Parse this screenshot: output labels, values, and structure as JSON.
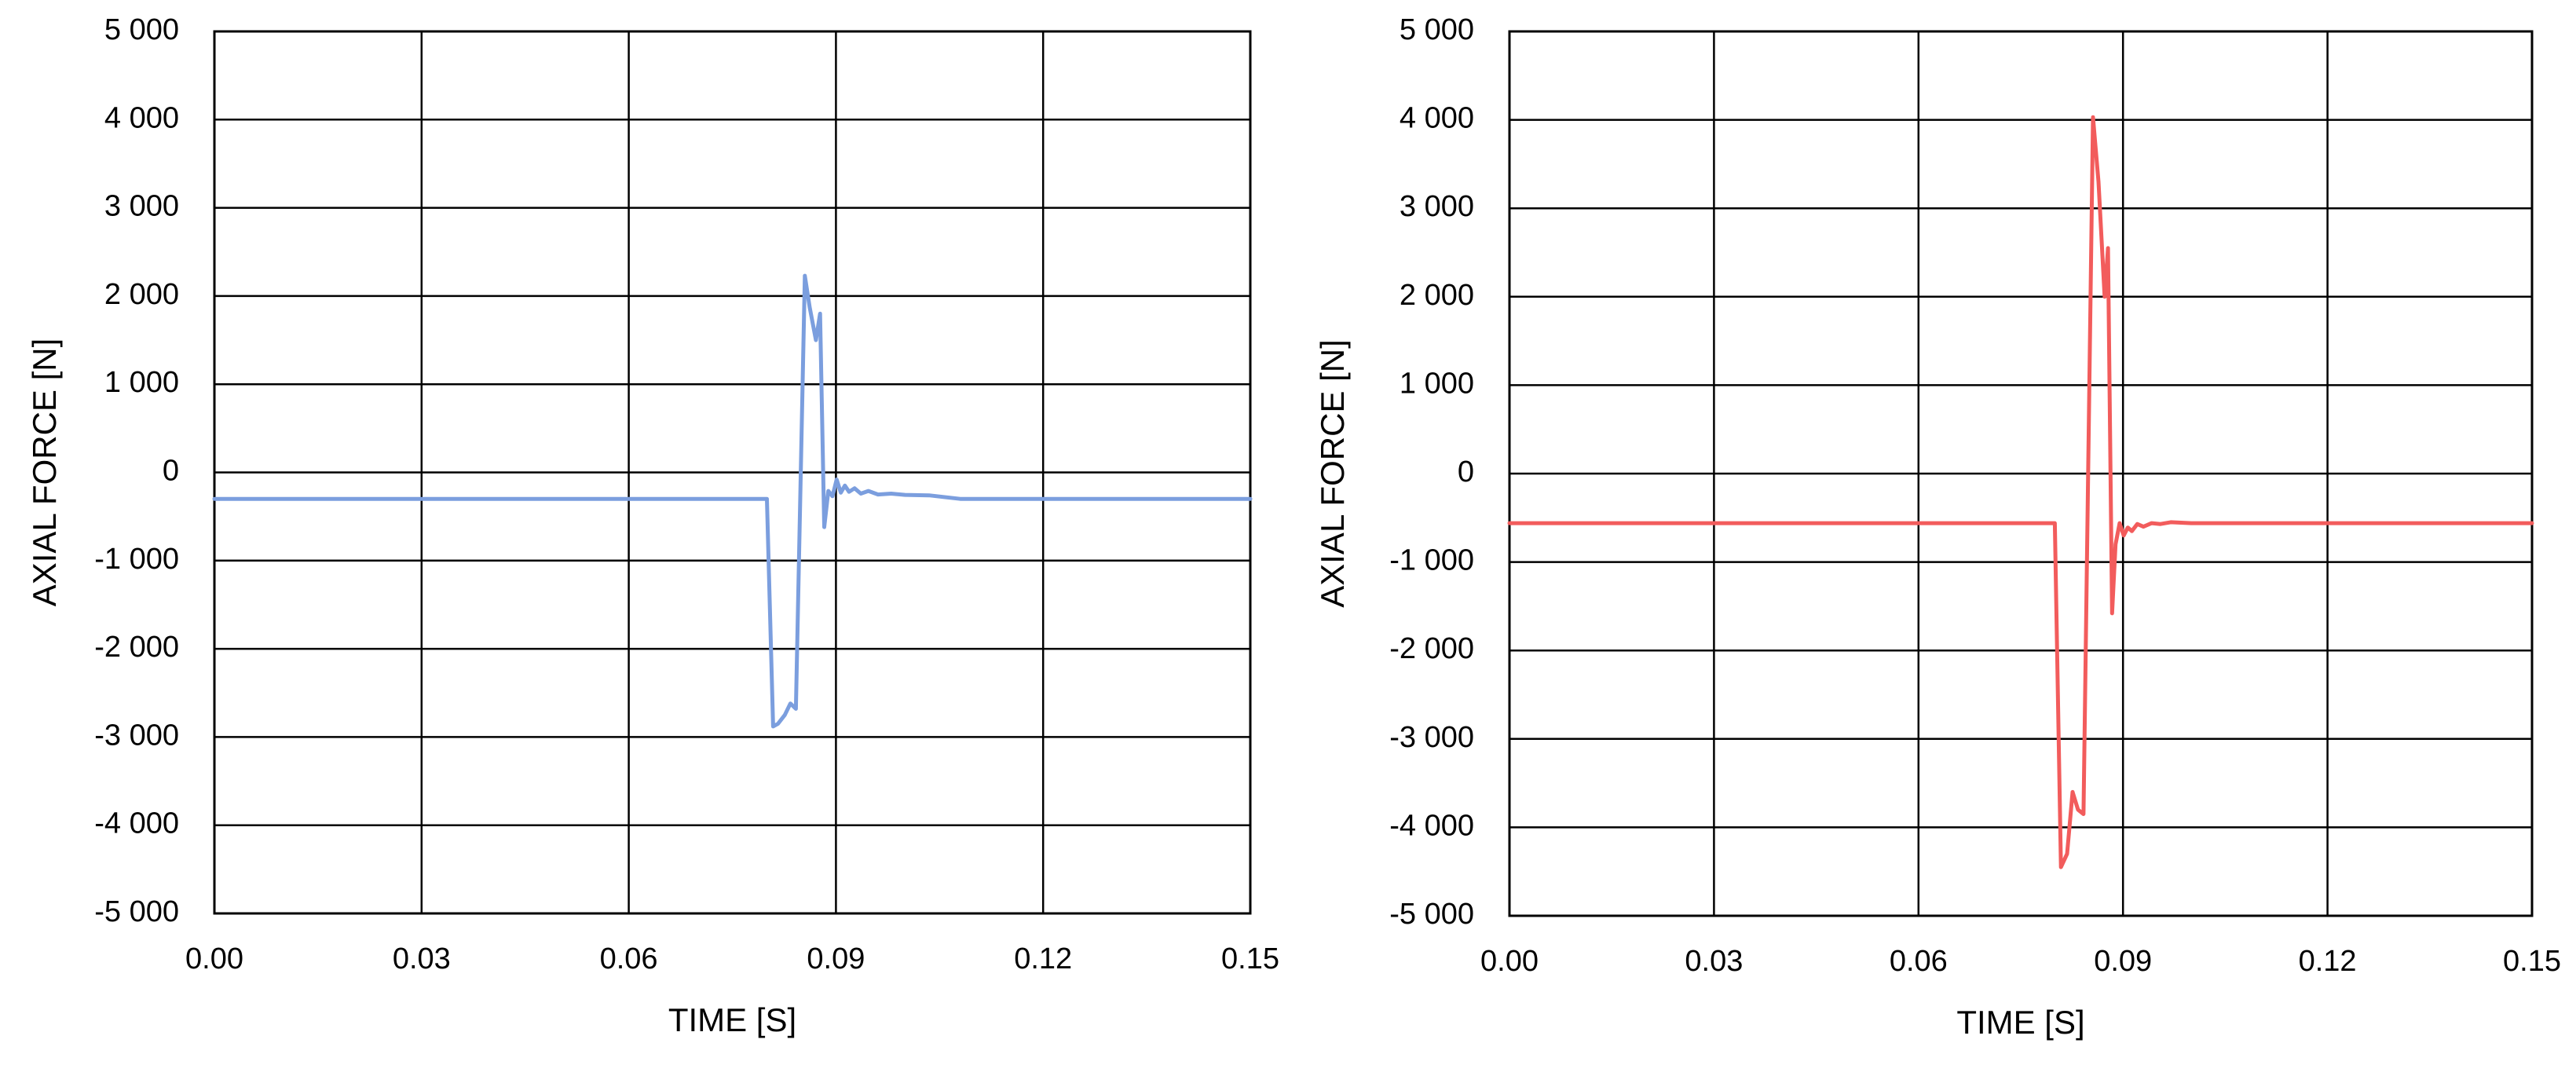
{
  "chart_data": [
    {
      "type": "line",
      "title": "",
      "xlabel": "TIME [S]",
      "ylabel": "AXIAL FORCE [N]",
      "xlim": [
        0,
        0.15
      ],
      "ylim": [
        -5000,
        5000
      ],
      "xticks": [
        "0.00",
        "0.03",
        "0.06",
        "0.09",
        "0.12",
        "0.15"
      ],
      "yticks": [
        "5 000",
        "4 000",
        "3 000",
        "2 000",
        "1 000",
        "0",
        "-1 000",
        "-2 000",
        "-3 000",
        "-4 000",
        "-5 000"
      ],
      "grid": true,
      "legend": "none",
      "series": [
        {
          "color": "#7b9ede",
          "x": [
            0.0,
            0.08,
            0.0809,
            0.0816,
            0.0826,
            0.0834,
            0.0842,
            0.0855,
            0.0862,
            0.0871,
            0.0877,
            0.0883,
            0.0889,
            0.0895,
            0.0901,
            0.0907,
            0.0913,
            0.0919,
            0.0927,
            0.0936,
            0.0947,
            0.0961,
            0.098,
            0.1,
            0.1035,
            0.108,
            0.12,
            0.15
          ],
          "y": [
            -300,
            -300,
            -2880,
            -2850,
            -2750,
            -2620,
            -2680,
            2230,
            1870,
            1500,
            1800,
            -620,
            -210,
            -270,
            -80,
            -230,
            -150,
            -220,
            -180,
            -240,
            -210,
            -250,
            -240,
            -255,
            -260,
            -300,
            -300,
            -300
          ]
        }
      ]
    },
    {
      "type": "line",
      "title": "",
      "xlabel": "TIME [S]",
      "ylabel": "AXIAL FORCE [N]",
      "xlim": [
        0,
        0.15
      ],
      "ylim": [
        -5000,
        5000
      ],
      "xticks": [
        "0.00",
        "0.03",
        "0.06",
        "0.09",
        "0.12",
        "0.15"
      ],
      "yticks": [
        "5 000",
        "4 000",
        "3 000",
        "2 000",
        "1 000",
        "0",
        "-1 000",
        "-2 000",
        "-3 000",
        "-4 000",
        "-5 000"
      ],
      "grid": true,
      "legend": "none",
      "series": [
        {
          "color": "#f25c5c",
          "x": [
            0.0,
            0.08,
            0.0809,
            0.0818,
            0.0826,
            0.0834,
            0.0842,
            0.0856,
            0.0864,
            0.0873,
            0.0878,
            0.0884,
            0.0889,
            0.0895,
            0.0901,
            0.0907,
            0.0913,
            0.0921,
            0.093,
            0.0942,
            0.0955,
            0.097,
            0.1,
            0.15
          ],
          "y": [
            -560,
            -560,
            -4450,
            -4300,
            -3600,
            -3800,
            -3850,
            4030,
            3300,
            2000,
            2550,
            -1580,
            -800,
            -560,
            -700,
            -610,
            -650,
            -570,
            -600,
            -560,
            -570,
            -550,
            -560,
            -560
          ]
        }
      ]
    }
  ]
}
